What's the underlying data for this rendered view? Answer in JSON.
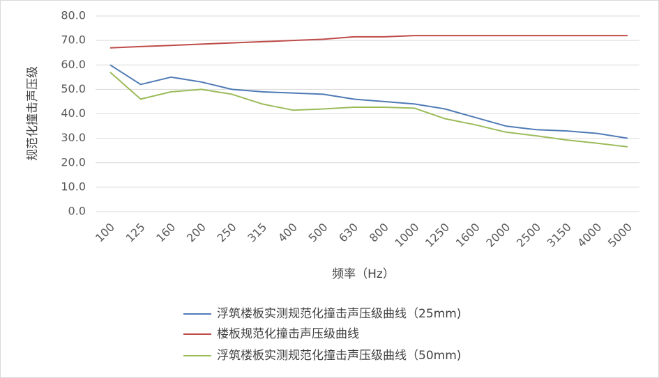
{
  "chart_data": {
    "type": "line",
    "title": "",
    "xlabel": "频率（Hz）",
    "ylabel": "规范化撞击声压级",
    "ylim": [
      0,
      80
    ],
    "yticks": [
      "0.0",
      "10.0",
      "20.0",
      "30.0",
      "40.0",
      "50.0",
      "60.0",
      "70.0",
      "80.0"
    ],
    "grid": "horizontal",
    "legend_position": "bottom",
    "categories": [
      "100",
      "125",
      "160",
      "200",
      "250",
      "315",
      "400",
      "500",
      "630",
      "800",
      "1000",
      "1250",
      "1600",
      "2000",
      "2500",
      "3150",
      "4000",
      "5000"
    ],
    "series": [
      {
        "name": "浮筑楼板实测规范化撞击声压级曲线（25mm)",
        "color": "#4f7ab5",
        "values": [
          60.0,
          52.0,
          55.0,
          53.0,
          50.0,
          49.0,
          48.5,
          48.0,
          46.0,
          45.0,
          44.0,
          42.0,
          38.5,
          35.0,
          33.5,
          33.0,
          32.0,
          30.0
        ]
      },
      {
        "name": "楼板规范化撞击声压级曲线",
        "color": "#be4b48",
        "values": [
          67.0,
          67.5,
          68.0,
          68.5,
          69.0,
          69.5,
          70.0,
          70.5,
          71.5,
          71.5,
          72.0,
          72.0,
          72.0,
          72.0,
          72.0,
          72.0,
          72.0,
          72.0
        ]
      },
      {
        "name": "浮筑楼板实测规范化撞击声压级曲线（50mm)",
        "color": "#9bbb59",
        "values": [
          57.0,
          46.0,
          49.0,
          50.0,
          48.0,
          44.0,
          41.5,
          42.0,
          42.7,
          42.7,
          42.3,
          38.0,
          35.5,
          32.5,
          31.0,
          29.3,
          28.0,
          26.5
        ]
      }
    ]
  }
}
